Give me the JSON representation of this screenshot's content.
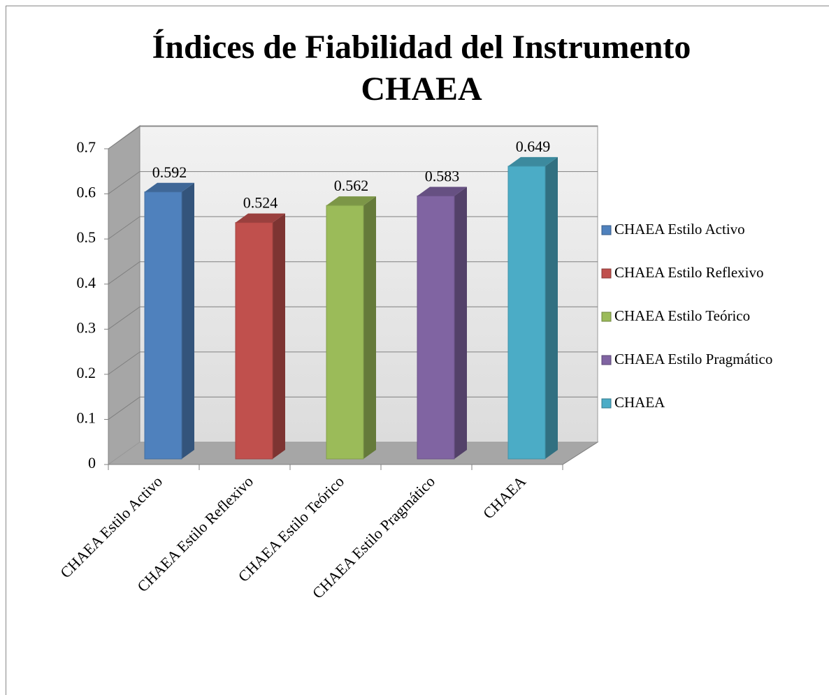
{
  "chart_data": {
    "type": "bar3d",
    "title": [
      "Índices de Fiabilidad del Instrumento",
      "CHAEA"
    ],
    "categories": [
      "CHAEA Estilo Activo",
      "CHAEA Estilo Reflexivo",
      "CHAEA Estilo Teórico",
      "CHAEA Estilo Pragmático",
      "CHAEA"
    ],
    "values": [
      0.592,
      0.524,
      0.562,
      0.583,
      0.649
    ],
    "colors": [
      "#4f81bd",
      "#c0504d",
      "#9bbb59",
      "#8064a2",
      "#4bacc6"
    ],
    "ylim": [
      0,
      0.7
    ],
    "yticks": [
      0,
      0.1,
      0.2,
      0.3,
      0.4,
      0.5,
      0.6,
      0.7
    ],
    "grid": true,
    "legend": "right"
  }
}
